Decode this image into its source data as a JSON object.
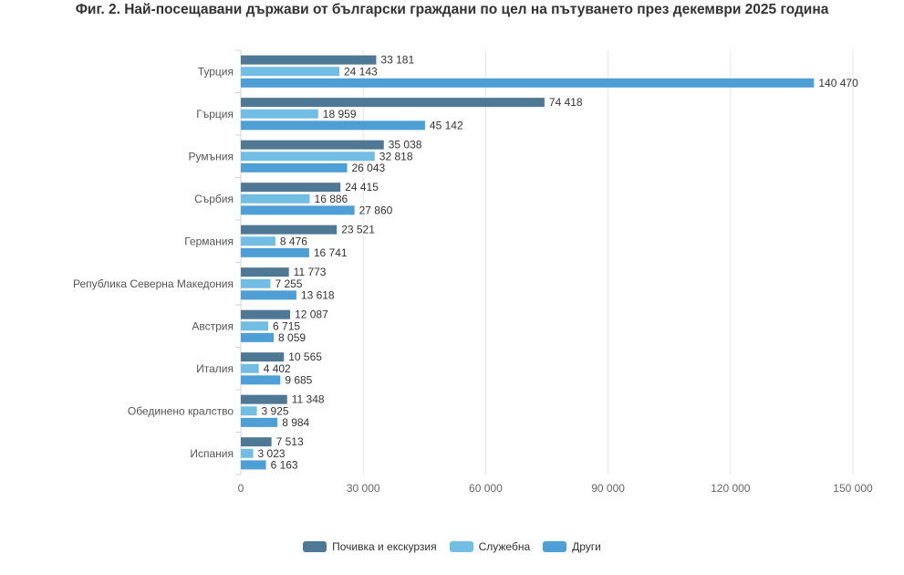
{
  "chart_data": {
    "type": "bar",
    "orientation": "horizontal",
    "title": "Фиг. 2. Най-посещавани държави от български граждани по цел на пътуването през декември 2025 година",
    "categories": [
      "Турция",
      "Гърция",
      "Румъния",
      "Сърбия",
      "Германия",
      "Република Северна Македония",
      "Австрия",
      "Италия",
      "Обединено кралство",
      "Испания"
    ],
    "series": [
      {
        "name": "Почивка и екскурзия",
        "color": "#4f7895",
        "values": [
          33181,
          74418,
          35038,
          24415,
          23521,
          11773,
          12087,
          10565,
          11348,
          7513
        ],
        "labels": [
          "33 181",
          "74 418",
          "35 038",
          "24 415",
          "23 521",
          "11 773",
          "12 087",
          "10 565",
          "11 348",
          "7 513"
        ]
      },
      {
        "name": "Служебна",
        "color": "#72bde3",
        "values": [
          24143,
          18959,
          32818,
          16886,
          8476,
          7255,
          6715,
          4402,
          3925,
          3023
        ],
        "labels": [
          "24 143",
          "18 959",
          "32 818",
          "16 886",
          "8 476",
          "7 255",
          "6 715",
          "4 402",
          "3 925",
          "3 023"
        ]
      },
      {
        "name": "Други",
        "color": "#4d9fd6",
        "values": [
          140470,
          45142,
          26043,
          27860,
          16741,
          13618,
          8059,
          9685,
          8984,
          6163
        ],
        "labels": [
          "140 470",
          "45 142",
          "26 043",
          "27 860",
          "16 741",
          "13 618",
          "8 059",
          "9 685",
          "8 984",
          "6 163"
        ]
      }
    ],
    "xlim": [
      0,
      150000
    ],
    "xticks": [
      0,
      30000,
      60000,
      90000,
      120000,
      150000
    ],
    "xtick_labels": [
      "0",
      "30 000",
      "60 000",
      "90 000",
      "120 000",
      "150 000"
    ],
    "grid": true,
    "legend_position": "bottom"
  }
}
